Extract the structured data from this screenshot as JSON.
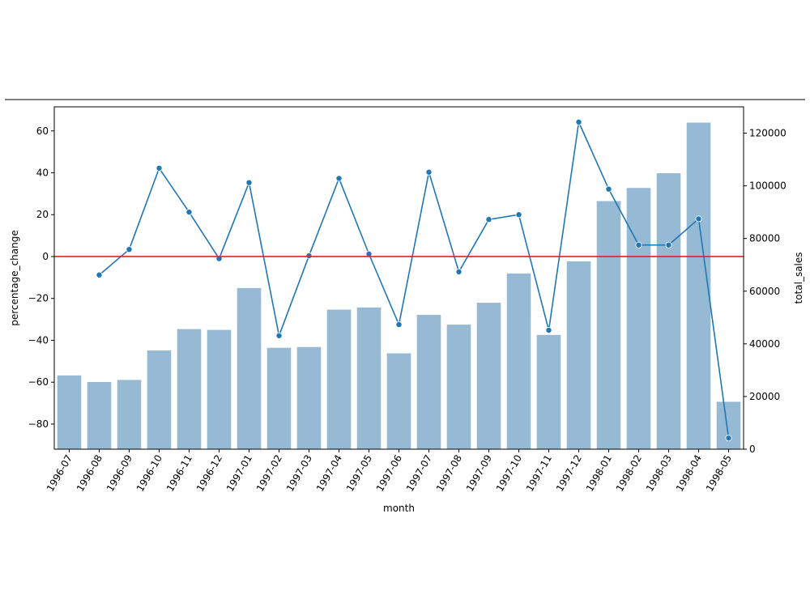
{
  "chart_data": {
    "type": "bar",
    "categories": [
      "1996-07",
      "1996-08",
      "1996-09",
      "1996-10",
      "1996-11",
      "1996-12",
      "1997-01",
      "1997-02",
      "1997-03",
      "1997-04",
      "1997-05",
      "1997-06",
      "1997-07",
      "1997-08",
      "1997-09",
      "1997-10",
      "1997-11",
      "1997-12",
      "1998-01",
      "1998-02",
      "1998-03",
      "1998-04",
      "1998-05"
    ],
    "xlabel": "month",
    "ylabel_left": "percentage_change",
    "ylabel_right": "total_sales",
    "ylim_left": [
      -92,
      71.5
    ],
    "ylim_right": [
      0,
      130000
    ],
    "yticks_left": [
      -80,
      -60,
      -40,
      -20,
      0,
      20,
      40,
      60
    ],
    "yticks_right": [
      0,
      20000,
      40000,
      60000,
      80000,
      100000,
      120000
    ],
    "series": [
      {
        "type": "bar",
        "axis": "right",
        "color": "#96b9d4",
        "values": [
          28000,
          25500,
          26300,
          37500,
          45600,
          45300,
          61200,
          38500,
          38800,
          53000,
          53800,
          36400,
          51000,
          47300,
          55600,
          66700,
          43400,
          71300,
          94200,
          99200,
          104800,
          124000,
          18000
        ]
      },
      {
        "type": "line",
        "axis": "left",
        "color": "#1f77b4",
        "values": [
          null,
          -8.8,
          3.4,
          42.2,
          21.2,
          -1.0,
          35.3,
          -37.8,
          0.4,
          37.3,
          1.2,
          -32.5,
          40.3,
          -7.3,
          17.7,
          20.0,
          -35.2,
          64.2,
          32.2,
          5.5,
          5.5,
          18.0,
          -86.7
        ]
      }
    ],
    "reference_line": {
      "value": 0,
      "axis": "left",
      "color": "#d62728"
    },
    "grid": false,
    "legend": "none"
  }
}
